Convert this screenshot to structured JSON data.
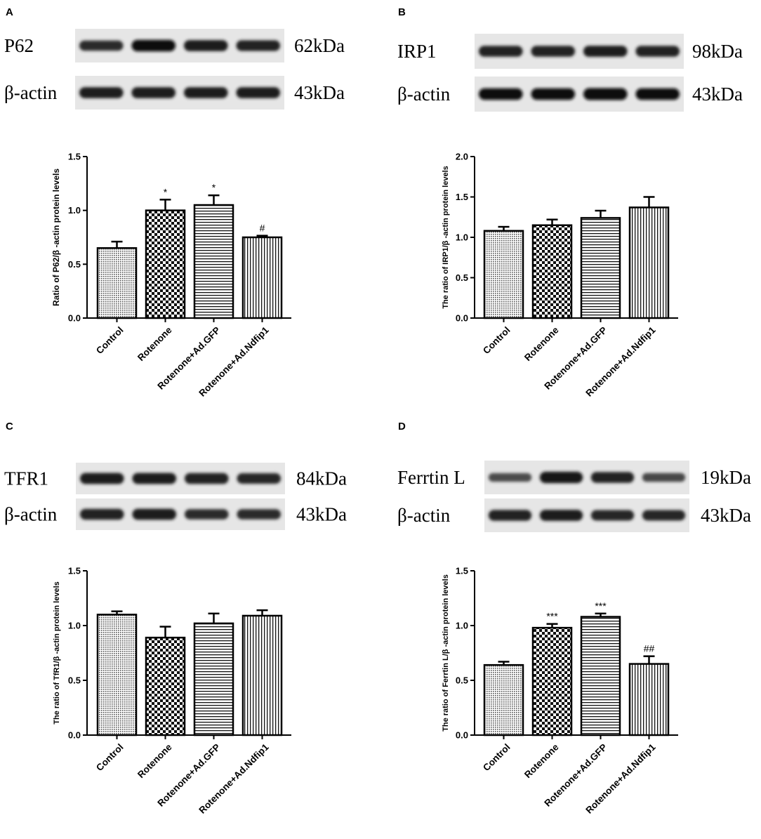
{
  "chart_data": [
    {
      "type": "bar",
      "panel": "A",
      "blots": [
        {
          "label": "P62",
          "kda": "62kDa",
          "intensity": [
            0.7,
            0.95,
            0.85,
            0.78
          ]
        },
        {
          "label": "β-actin",
          "kda": "43kDa",
          "intensity": [
            0.85,
            0.85,
            0.85,
            0.85
          ]
        }
      ],
      "categories": [
        "Control",
        "Rotenone",
        "Rotenone+Ad.GFP",
        "Rotenone+Ad.Ndfip1"
      ],
      "values": [
        0.65,
        1.0,
        1.05,
        0.75
      ],
      "errors": [
        0.06,
        0.1,
        0.09,
        0.015
      ],
      "significance": [
        "",
        "*",
        "*",
        "#"
      ],
      "patterns": [
        "dots",
        "checker",
        "hlines",
        "vlines"
      ],
      "ylabel": "Ratio of P62/β -actin protein levels",
      "ylim": [
        0,
        1.5
      ],
      "yticks": [
        "0.0",
        "0.5",
        "1.0",
        "1.5"
      ],
      "yticks_values": [
        0,
        0.5,
        1.0,
        1.5
      ]
    },
    {
      "type": "bar",
      "panel": "B",
      "blots": [
        {
          "label": "IRP1",
          "kda": "98kDa",
          "intensity": [
            0.8,
            0.8,
            0.85,
            0.8
          ]
        },
        {
          "label": "β-actin",
          "kda": "43kDa",
          "intensity": [
            0.95,
            0.95,
            1.0,
            0.95
          ]
        }
      ],
      "categories": [
        "Control",
        "Rotenone",
        "Rotenone+Ad.GFP",
        "Rotenone+Ad.Ndfip1"
      ],
      "values": [
        1.08,
        1.15,
        1.24,
        1.37
      ],
      "errors": [
        0.05,
        0.07,
        0.09,
        0.13
      ],
      "significance": [
        "",
        "",
        "",
        ""
      ],
      "patterns": [
        "dots",
        "checker",
        "hlines",
        "vlines"
      ],
      "ylabel": "The ratio of IRP1/β -actin protein levels",
      "ylim": [
        0,
        2.0
      ],
      "yticks": [
        "0.0",
        "0.5",
        "1.0",
        "1.5",
        "2.0"
      ],
      "yticks_values": [
        0,
        0.5,
        1.0,
        1.5,
        2.0
      ]
    },
    {
      "type": "bar",
      "panel": "C",
      "blots": [
        {
          "label": "TFR1",
          "kda": "84kDa",
          "intensity": [
            0.85,
            0.85,
            0.8,
            0.75
          ]
        },
        {
          "label": "β-actin",
          "kda": "43kDa",
          "intensity": [
            0.8,
            0.85,
            0.7,
            0.7
          ]
        }
      ],
      "categories": [
        "Control",
        "Rotenone",
        "Rotenone+Ad.GFP",
        "Rotenone+Ad.Ndfip1"
      ],
      "values": [
        1.1,
        0.89,
        1.02,
        1.09
      ],
      "errors": [
        0.03,
        0.1,
        0.09,
        0.05
      ],
      "significance": [
        "",
        "",
        "",
        ""
      ],
      "patterns": [
        "dots",
        "checker",
        "hlines",
        "vlines"
      ],
      "ylabel": "The ratio of TfR1/β -actin protein levels",
      "ylim": [
        0,
        1.5
      ],
      "yticks": [
        "0.0",
        "0.5",
        "1.0",
        "1.5"
      ],
      "yticks_values": [
        0,
        0.5,
        1.0,
        1.5
      ]
    },
    {
      "type": "bar",
      "panel": "D",
      "blots": [
        {
          "label": "Ferrtin L",
          "kda": "19kDa",
          "intensity": [
            0.4,
            0.9,
            0.8,
            0.45
          ]
        },
        {
          "label": "β-actin",
          "kda": "43kDa",
          "intensity": [
            0.8,
            0.85,
            0.75,
            0.75
          ]
        }
      ],
      "categories": [
        "Control",
        "Rotenone",
        "Rotenone+Ad.GFP",
        "Rotenone+Ad.Ndfip1"
      ],
      "values": [
        0.64,
        0.98,
        1.08,
        0.65
      ],
      "errors": [
        0.03,
        0.035,
        0.03,
        0.07
      ],
      "significance": [
        "",
        "***",
        "***",
        "##"
      ],
      "patterns": [
        "dots",
        "checker",
        "hlines",
        "vlines"
      ],
      "ylabel": "The ratio of Ferrtin L/β -actin protein levels",
      "ylim": [
        0,
        1.5
      ],
      "yticks": [
        "0.0",
        "0.5",
        "1.0",
        "1.5"
      ],
      "yticks_values": [
        0,
        0.5,
        1.0,
        1.5
      ]
    }
  ]
}
